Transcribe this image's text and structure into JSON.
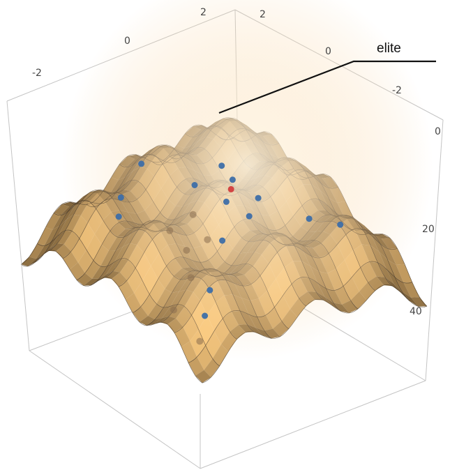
{
  "chart_data": {
    "type": "surface3d",
    "function": "multimodal surface with sinusoidal ripples (Rastrigin-like), peak at center",
    "x_ticks": [
      "-2",
      "0",
      "2"
    ],
    "y_ticks": [
      "2",
      "0",
      "-2"
    ],
    "z_ticks": [
      "0",
      "20",
      "40"
    ],
    "xlim": [
      -3,
      3
    ],
    "ylim": [
      -3,
      3
    ],
    "zlim": [
      0,
      50
    ],
    "z_axis_inverted": true,
    "grid_mesh": true,
    "annotation": {
      "label": "elite"
    },
    "points": [
      {
        "x": 0.2,
        "y": 0.1,
        "z": 1,
        "color": "#d23c3c"
      },
      {
        "x": 0.4,
        "y": -0.2,
        "z": 2,
        "color": "#3d6ea8"
      },
      {
        "x": -0.1,
        "y": 0.4,
        "z": 2,
        "color": "#3d6ea8"
      },
      {
        "x": 0.6,
        "y": 0.5,
        "z": 3,
        "color": "#3d6ea8"
      },
      {
        "x": -0.5,
        "y": -0.3,
        "z": 3,
        "color": "#3d6ea8"
      },
      {
        "x": 0.9,
        "y": 0.0,
        "z": 4,
        "color": "#3d6ea8"
      },
      {
        "x": -0.8,
        "y": 0.7,
        "z": 5,
        "color": "#3d6ea8"
      },
      {
        "x": 1.1,
        "y": -0.9,
        "z": 6,
        "color": "#3d6ea8"
      },
      {
        "x": 1.8,
        "y": 1.7,
        "z": 8,
        "color": "#3d6ea8"
      },
      {
        "x": -2.1,
        "y": -0.4,
        "z": 8,
        "color": "#3d6ea8"
      },
      {
        "x": -1.6,
        "y": -1.4,
        "z": 9,
        "color": "#3d6ea8"
      },
      {
        "x": -1.2,
        "y": -1.8,
        "z": 10,
        "color": "#3d6ea8"
      },
      {
        "x": 1.4,
        "y": 1.2,
        "z": 7,
        "color": "#3d6ea8"
      },
      {
        "x": 1.9,
        "y": -1.9,
        "z": 12,
        "color": "#3d6ea8"
      },
      {
        "x": 0.3,
        "y": -1.2,
        "z": 14,
        "color": "#8b6e4e"
      },
      {
        "x": -0.6,
        "y": -0.9,
        "z": 16,
        "color": "#8b6e4e"
      },
      {
        "x": 0.8,
        "y": -1.5,
        "z": 18,
        "color": "#8b6e4e"
      },
      {
        "x": 1.2,
        "y": -2.3,
        "z": 22,
        "color": "#8b6e4e"
      },
      {
        "x": 2.3,
        "y": -2.5,
        "z": 24,
        "color": "#8b6e4e"
      },
      {
        "x": 2.1,
        "y": -2.2,
        "z": 18,
        "color": "#3d6ea8"
      },
      {
        "x": -0.2,
        "y": -0.6,
        "z": 9,
        "color": "#8b6e4e"
      },
      {
        "x": 0.5,
        "y": -0.8,
        "z": 11,
        "color": "#8b6e4e"
      }
    ]
  }
}
